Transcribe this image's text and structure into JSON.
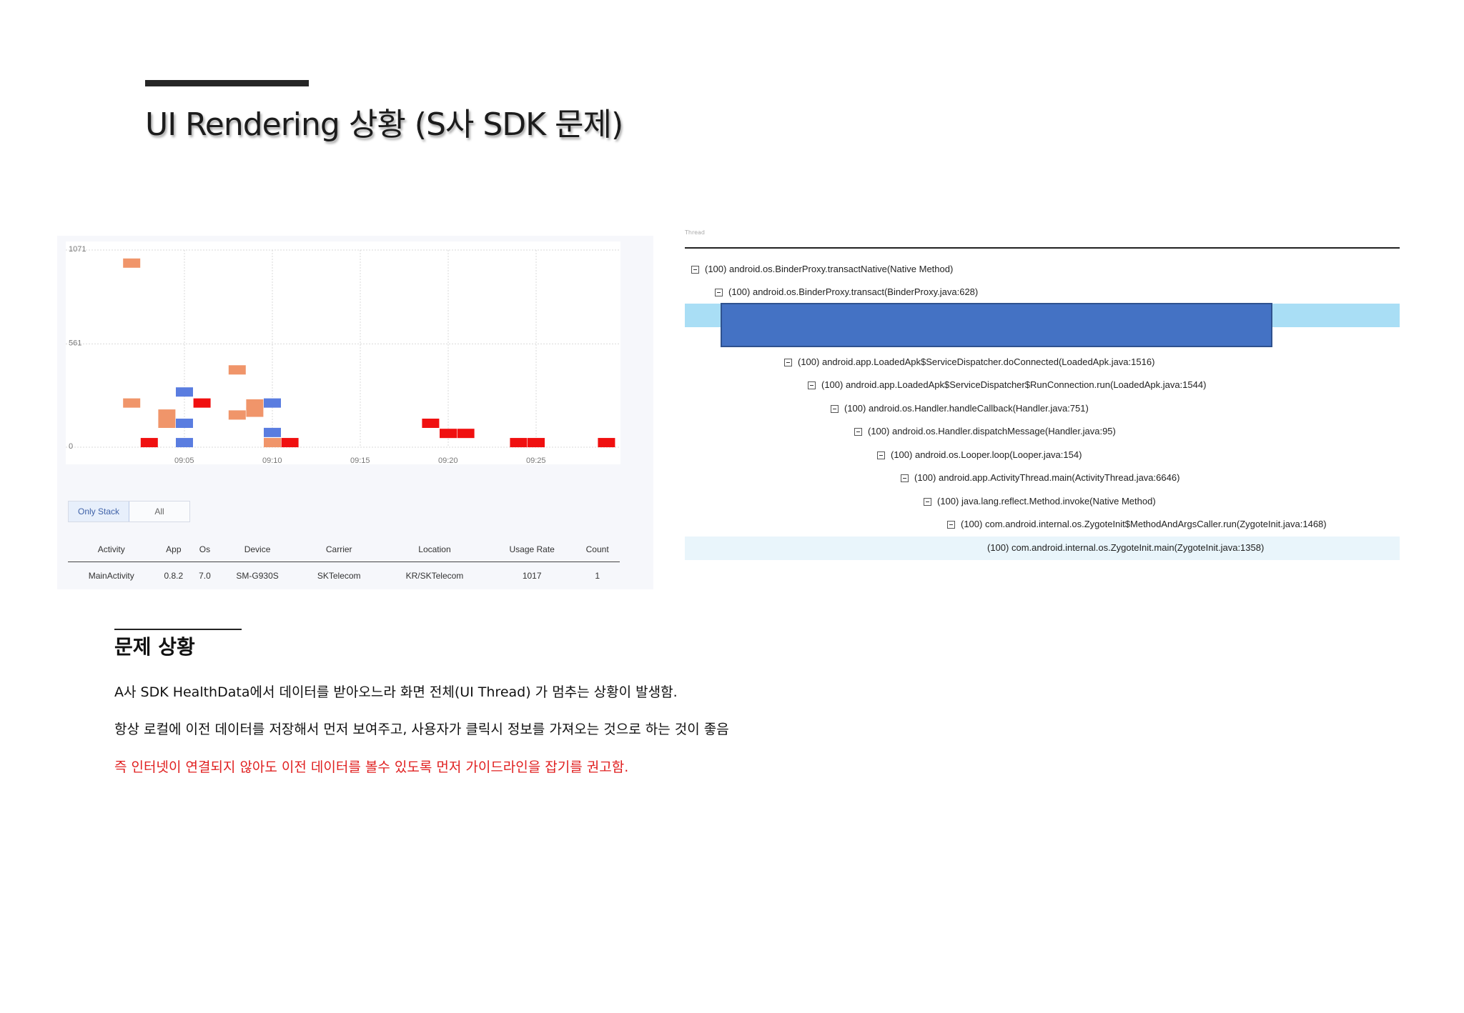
{
  "slide": {
    "title": "UI Rendering 상황 (S사  SDK 문제)"
  },
  "chart_data": {
    "type": "scatter",
    "y_ticks": [
      "1071",
      "561",
      "0"
    ],
    "x_ticks": [
      "09:05",
      "09:10",
      "09:15",
      "09:20",
      "09:25"
    ],
    "ylim": [
      0,
      1071
    ],
    "grid": true,
    "series": [
      {
        "color": "#f0956a",
        "points": [
          {
            "x": "09:02",
            "y": 1000
          },
          {
            "x": "09:02",
            "y": 240
          },
          {
            "x": "09:04",
            "y": 180
          },
          {
            "x": "09:04",
            "y": 130
          },
          {
            "x": "09:08",
            "y": 420
          },
          {
            "x": "09:08",
            "y": 175
          },
          {
            "x": "09:09",
            "y": 235
          },
          {
            "x": "09:09",
            "y": 190
          },
          {
            "x": "09:10",
            "y": 25
          }
        ]
      },
      {
        "color": "#5a7de0",
        "points": [
          {
            "x": "09:05",
            "y": 300
          },
          {
            "x": "09:05",
            "y": 130
          },
          {
            "x": "09:05",
            "y": 25
          },
          {
            "x": "09:10",
            "y": 240
          },
          {
            "x": "09:10",
            "y": 80
          }
        ]
      },
      {
        "color": "#f01010",
        "points": [
          {
            "x": "09:03",
            "y": 25
          },
          {
            "x": "09:06",
            "y": 240
          },
          {
            "x": "09:11",
            "y": 25
          },
          {
            "x": "09:19",
            "y": 130
          },
          {
            "x": "09:20",
            "y": 75
          },
          {
            "x": "09:21",
            "y": 75
          },
          {
            "x": "09:24",
            "y": 25
          },
          {
            "x": "09:25",
            "y": 25
          },
          {
            "x": "09:29",
            "y": 25
          }
        ]
      }
    ]
  },
  "filters": {
    "only_stack": "Only Stack",
    "all": "All"
  },
  "table": {
    "headers": [
      "Activity",
      "App",
      "Os",
      "Device",
      "Carrier",
      "Location",
      "Usage Rate",
      "Count"
    ],
    "rows": [
      [
        "MainActivity",
        "0.8.2",
        "7.0",
        "SM-G930S",
        "SKTelecom",
        "KR/SKTelecom",
        "1017",
        "1"
      ]
    ]
  },
  "stack": {
    "header_faint": "Thread",
    "frames": [
      "(100) android.os.BinderProxy.transactNative(Native Method)",
      "(100) android.os.BinderProxy.transact(BinderProxy.java:628)",
      "(100) android.app.LoadedApk$ServiceDispatcher.doConnected(LoadedApk.java:1516)",
      "(100) android.app.LoadedApk$ServiceDispatcher$RunConnection.run(LoadedApk.java:1544)",
      "(100) android.os.Handler.handleCallback(Handler.java:751)",
      "(100) android.os.Handler.dispatchMessage(Handler.java:95)",
      "(100) android.os.Looper.loop(Looper.java:154)",
      "(100) android.app.ActivityThread.main(ActivityThread.java:6646)",
      "(100) java.lang.reflect.Method.invoke(Native Method)",
      "(100) com.android.internal.os.ZygoteInit$MethodAndArgsCaller.run(ZygoteInit.java:1468)",
      "(100) com.android.internal.os.ZygoteInit.main(ZygoteInit.java:1358)"
    ]
  },
  "problem": {
    "title": "문제 상황",
    "line1": "A사 SDK HealthData에서 데이터를 받아오느라 화면 전체(UI Thread) 가 멈추는 상황이 발생함.",
    "line2": "항상 로컬에 이전 데이터를 저장해서 먼저 보여주고, 사용자가 클릭시 정보를 가져오는 것으로 하는 것이 좋음",
    "line3": "즉 인터넷이 연결되지 않아도 이전 데이터를 볼수 있도록 먼저 가이드라인을 잡기를 권고함."
  },
  "colors": {
    "highlight_block": "#4472c4",
    "highlight_band": "#a9def5",
    "red_text": "#e02020"
  }
}
